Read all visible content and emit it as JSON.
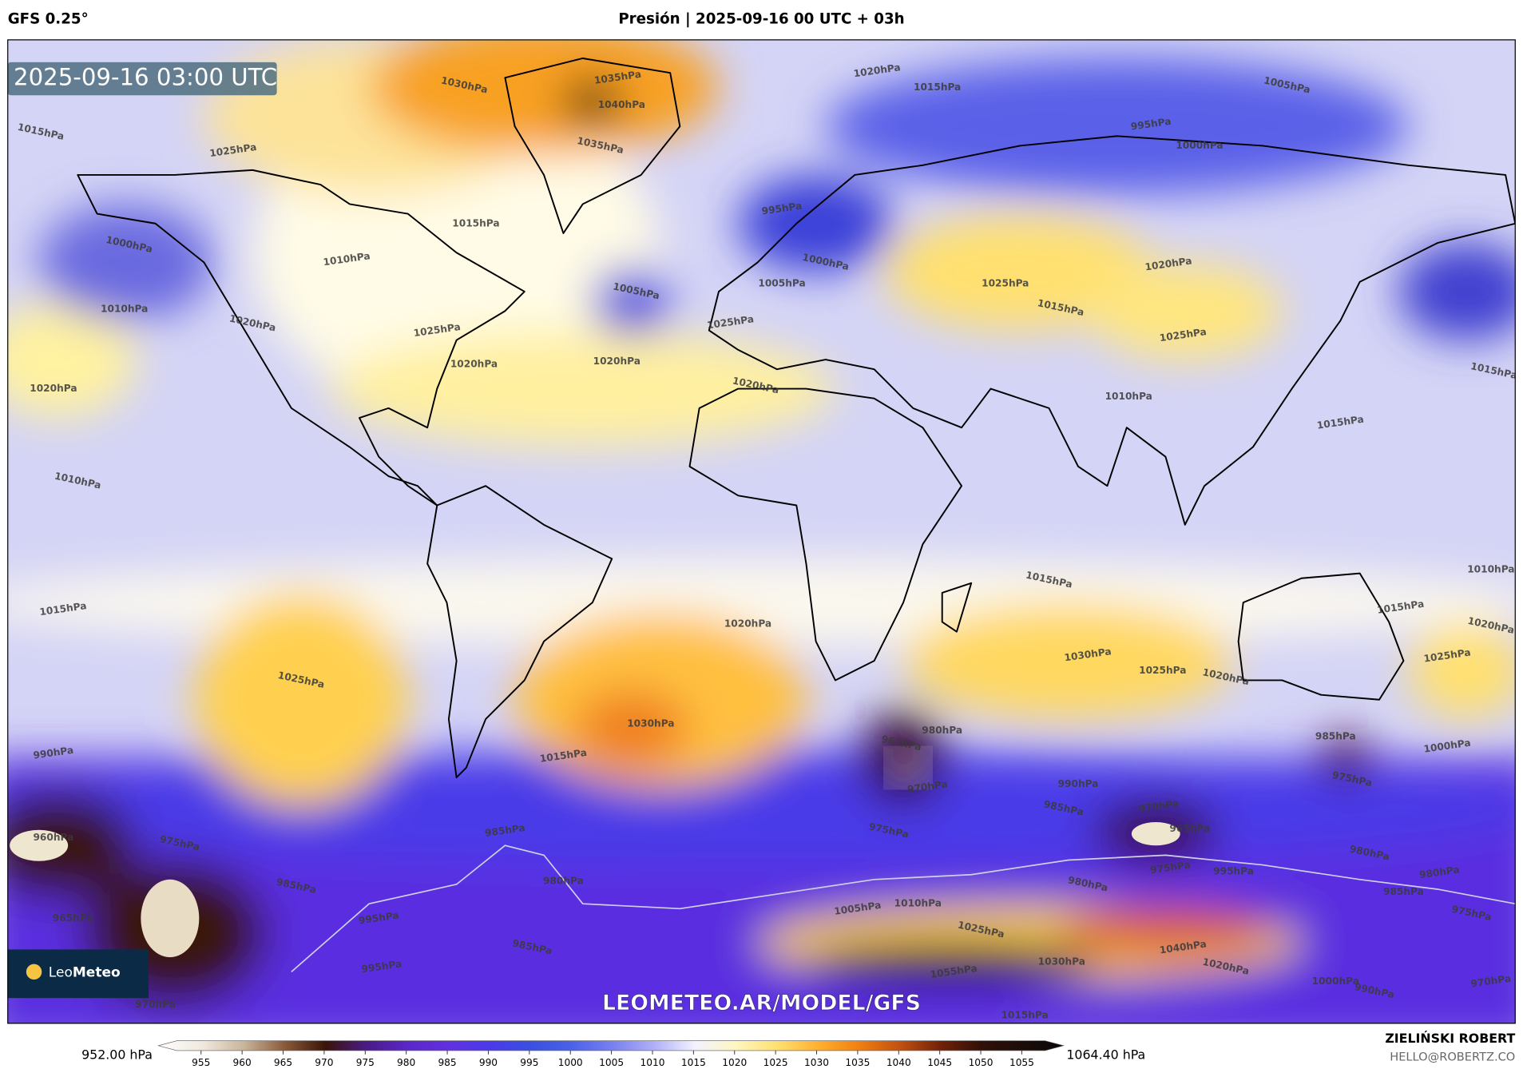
{
  "header": {
    "model": "GFS 0.25°",
    "title": "Presión | 2025-09-16 00 UTC + 03h"
  },
  "timestamp": "2025-09-16 03:00 UTC",
  "isobar_labels": [
    "1030hPa",
    "1035hPa",
    "1040hPa",
    "1035hPa",
    "1020hPa",
    "1015hPa",
    "1005hPa",
    "995hPa",
    "1000hPa",
    "1015hPa",
    "1025hPa",
    "1015hPa",
    "1000hPa",
    "1010hPa",
    "1010hPa",
    "1020hPa",
    "1025hPa",
    "1020hPa",
    "1005hPa",
    "995hPa",
    "1005hPa",
    "1000hPa",
    "1025hPa",
    "1020hPa",
    "1020hPa",
    "1020hPa",
    "1025hPa",
    "1015hPa",
    "1025hPa",
    "1010hPa",
    "1015hPa",
    "1015hPa",
    "1020hPa",
    "1010hPa",
    "1015hPa",
    "1020hPa",
    "1015hPa",
    "1030hPa",
    "1025hPa",
    "1020hPa",
    "1015hPa",
    "1010hPa",
    "1020hPa",
    "1025hPa",
    "1030hPa",
    "1025hPa",
    "1015hPa",
    "980hPa",
    "965hPa",
    "970hPa",
    "985hPa",
    "975hPa",
    "1000hPa",
    "990hPa",
    "985hPa",
    "970hPa",
    "965hPa",
    "975hPa",
    "990hPa",
    "960hPa",
    "975hPa",
    "985hPa",
    "980hPa",
    "985hPa",
    "995hPa",
    "965hPa",
    "985hPa",
    "995hPa",
    "970hPa",
    "980hPa",
    "975hPa",
    "995hPa",
    "980hPa",
    "980hPa",
    "985hPa",
    "975hPa",
    "1005hPa",
    "1010hPa",
    "1025hPa",
    "1040hPa",
    "1030hPa",
    "1020hPa",
    "1055hPa",
    "1000hPa",
    "990hPa",
    "970hPa",
    "1015hPa"
  ],
  "logo": {
    "leo": "Leo",
    "meteo": "Meteo"
  },
  "watermark": "LEOMETEO.AR/MODEL/GFS",
  "colorbar": {
    "min_label": "952.00 hPa",
    "max_label": "1064.40 hPa",
    "ticks": [
      955,
      960,
      965,
      970,
      975,
      980,
      985,
      990,
      995,
      1000,
      1005,
      1010,
      1015,
      1020,
      1025,
      1030,
      1035,
      1040,
      1045,
      1050,
      1055
    ]
  },
  "footer": {
    "author": "ZIELIŃSKI ROBERT",
    "email": "HELLO@ROBERTZ.CO"
  }
}
